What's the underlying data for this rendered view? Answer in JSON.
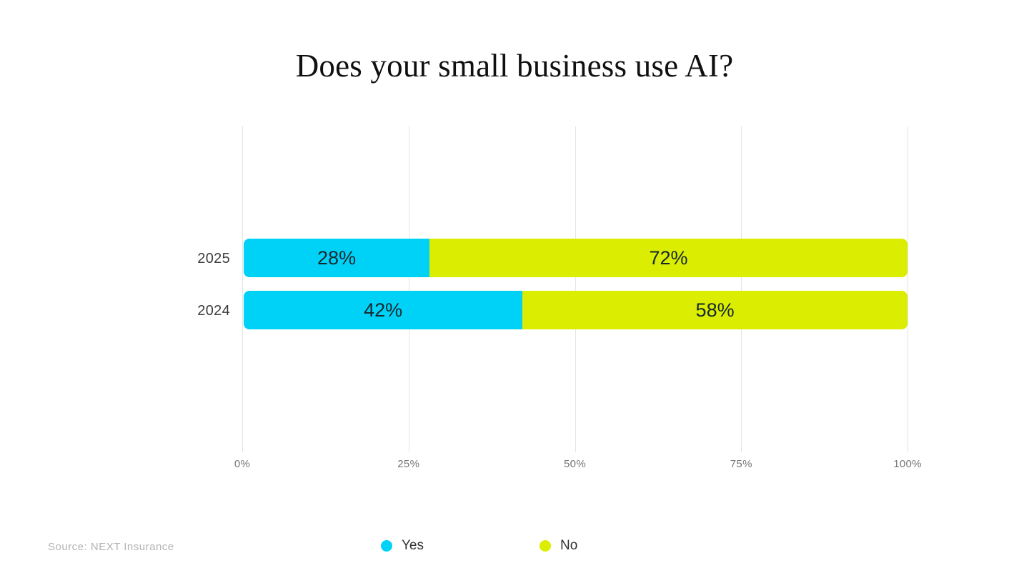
{
  "title": "Does your small business use AI?",
  "source_note": "Source: NEXT Insurance",
  "chart_data": {
    "type": "bar",
    "orientation": "horizontal",
    "stacked": true,
    "title": "Does your small business use AI?",
    "categories": [
      "2025",
      "2024"
    ],
    "series": [
      {
        "name": "Yes",
        "color": "#00D2F7",
        "values": [
          28,
          42
        ]
      },
      {
        "name": "No",
        "color": "#DBED00",
        "values": [
          72,
          58
        ]
      }
    ],
    "value_labels": [
      [
        "28%",
        "72%"
      ],
      [
        "42%",
        "58%"
      ]
    ],
    "x_ticks": [
      "0%",
      "25%",
      "50%",
      "75%",
      "100%"
    ],
    "xlim": [
      0,
      100
    ],
    "grid": "vertical",
    "legend_position": "bottom",
    "legend_items": [
      "Yes",
      "No"
    ]
  },
  "colors": {
    "yes": "#00D2F7",
    "no": "#DBED00",
    "gridline": "#e4e4e4",
    "tick_text": "#757575",
    "category_text": "#3d3d3d",
    "value_text": "#16282f",
    "source_text": "#b3b3b3",
    "title_text": "#101010"
  }
}
